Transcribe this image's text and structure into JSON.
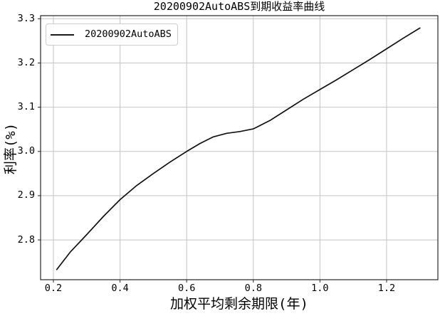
{
  "title": "20200902AutoABS到期收益率曲线",
  "legend": {
    "label": "20200902AutoABS",
    "line_color": "#1a1a1a"
  },
  "colors": {
    "background": "#ffffff",
    "grid": "#c4c4c4",
    "spine": "#262626",
    "tick": "#262626",
    "curve": "#111111"
  },
  "chart_data": {
    "type": "line",
    "title": "20200902AutoABS到期收益率曲线",
    "xlabel": "加权平均剩余期限(年)",
    "ylabel": "利率(%)",
    "xlim": [
      0.1615,
      1.354
    ],
    "ylim": [
      2.71,
      3.307
    ],
    "x_ticks": [
      0.2,
      0.4,
      0.6,
      0.8,
      1.0,
      1.2
    ],
    "y_ticks": [
      2.8,
      2.9,
      3.0,
      3.1,
      3.2,
      3.3
    ],
    "grid": true,
    "legend_position": "upper-left",
    "series": [
      {
        "name": "20200902AutoABS",
        "color": "#111111",
        "x": [
          0.21,
          0.25,
          0.3,
          0.35,
          0.4,
          0.45,
          0.5,
          0.55,
          0.6,
          0.64,
          0.68,
          0.72,
          0.76,
          0.8,
          0.85,
          0.9,
          0.95,
          1.0,
          1.05,
          1.1,
          1.15,
          1.2,
          1.25,
          1.3
        ],
        "y": [
          2.733,
          2.772,
          2.812,
          2.853,
          2.891,
          2.923,
          2.95,
          2.976,
          3.0,
          3.018,
          3.033,
          3.041,
          3.045,
          3.051,
          3.07,
          3.094,
          3.118,
          3.14,
          3.162,
          3.185,
          3.208,
          3.232,
          3.256,
          3.279
        ]
      }
    ]
  }
}
